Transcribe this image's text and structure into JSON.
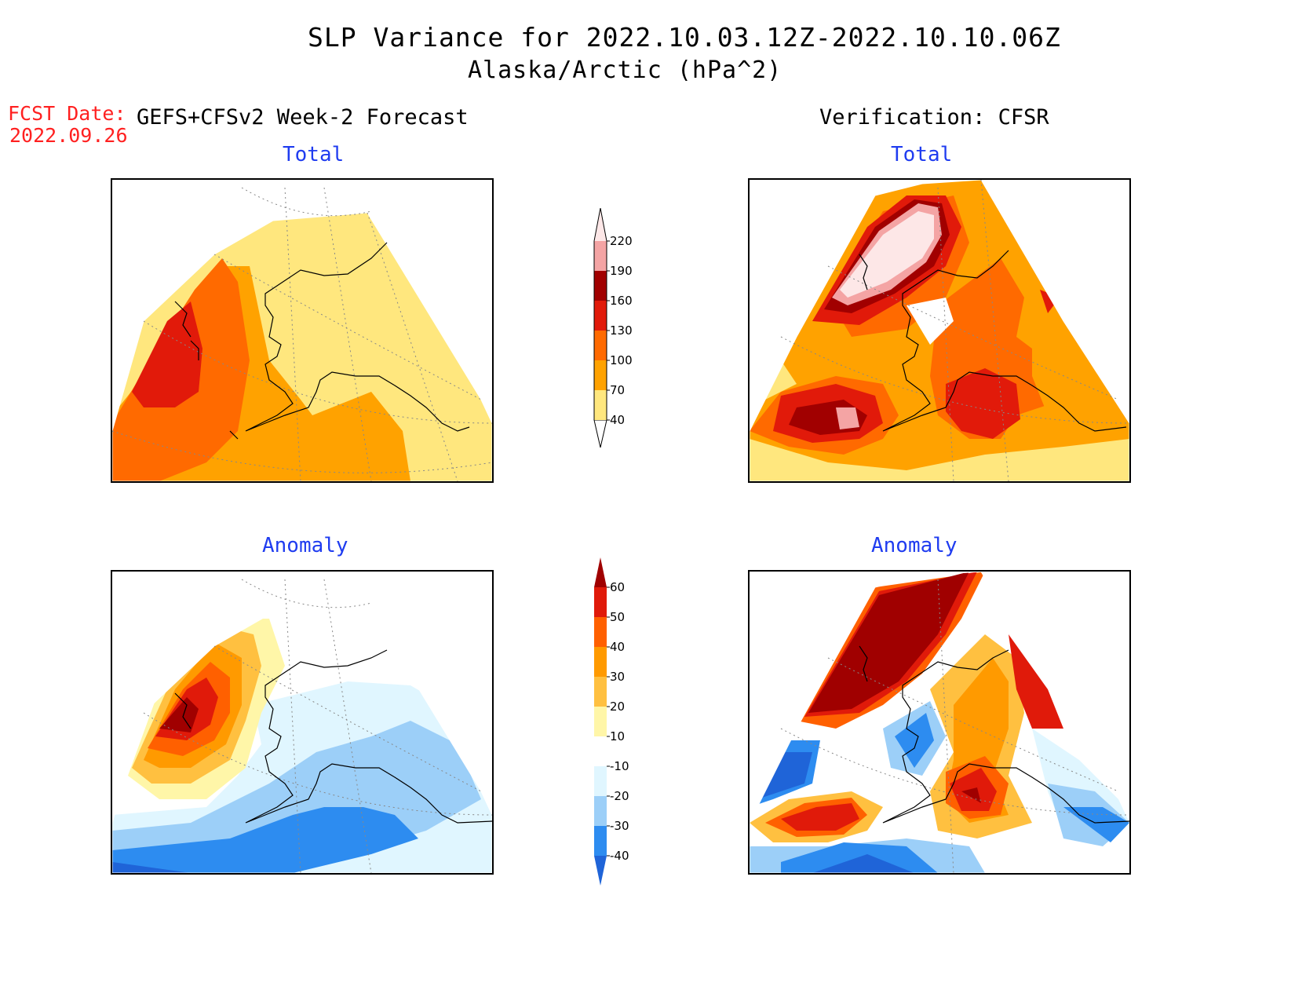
{
  "title": "SLP Variance for 2022.10.03.12Z-2022.10.10.06Z",
  "subtitle": "Alaska/Arctic (hPa^2)",
  "fcst_label": "FCST Date:",
  "fcst_date": "2022.09.26",
  "left_header": "GEFS+CFSv2 Week-2 Forecast",
  "right_header": "Verification: CFSR",
  "panels": {
    "forecast_total": "Total",
    "verification_total": "Total",
    "forecast_anomaly": "Anomaly",
    "verification_anomaly": "Anomaly"
  },
  "total_colorbar": {
    "labels": [
      "40",
      "70",
      "100",
      "130",
      "160",
      "190",
      "220"
    ],
    "colors": [
      "#ffe77e",
      "#ffa200",
      "#ff6a00",
      "#e11a0a",
      "#a10000",
      "#f4a4a4",
      "#fde7e7"
    ]
  },
  "anomaly_colorbar": {
    "labels": [
      "-40",
      "-30",
      "-20",
      "-10",
      "10",
      "20",
      "30",
      "40",
      "50",
      "60"
    ],
    "colors": [
      "#1f64d8",
      "#2d8cf0",
      "#9ccff8",
      "#e0f6ff",
      "#ffffff",
      "#fff6a8",
      "#ffc040",
      "#ff9a00",
      "#ff6000",
      "#e01a0a",
      "#a00000"
    ]
  }
}
